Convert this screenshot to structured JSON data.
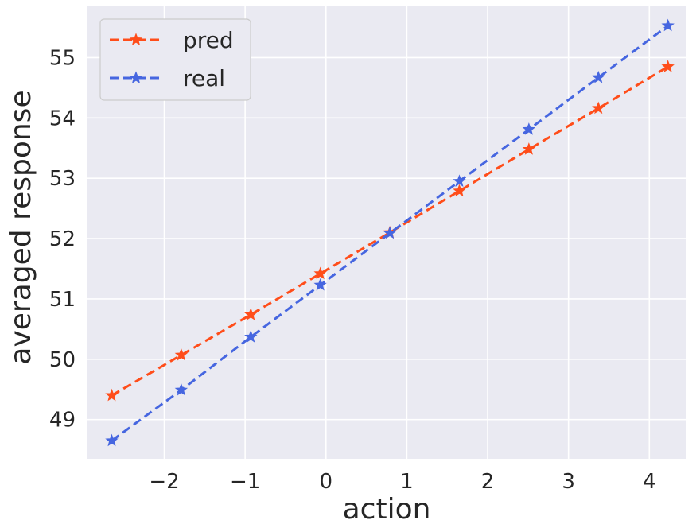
{
  "chart_data": {
    "type": "line",
    "title": "",
    "xlabel": "action",
    "ylabel": "averaged response",
    "xlim": [
      -2.95,
      4.45
    ],
    "ylim": [
      48.35,
      55.85
    ],
    "xticks": [
      -2,
      -1,
      0,
      1,
      2,
      3,
      4
    ],
    "xtick_labels": [
      "−2",
      "−1",
      "0",
      "1",
      "2",
      "3",
      "4"
    ],
    "yticks": [
      49,
      50,
      51,
      52,
      53,
      54,
      55
    ],
    "ytick_labels": [
      "49",
      "50",
      "51",
      "52",
      "53",
      "54",
      "55"
    ],
    "grid": true,
    "legend_position": "top-left",
    "x": [
      -2.65,
      -1.79,
      -0.93,
      -0.07,
      0.79,
      1.65,
      2.51,
      3.37,
      4.23
    ],
    "series": [
      {
        "name": "pred",
        "color": "#ff4d1a",
        "line_style": "dashed",
        "marker": "star",
        "values": [
          49.4,
          50.07,
          50.74,
          51.42,
          52.1,
          52.79,
          53.48,
          54.16,
          54.85
        ]
      },
      {
        "name": "real",
        "color": "#4666e0",
        "line_style": "dashed",
        "marker": "star",
        "values": [
          48.65,
          49.49,
          50.37,
          51.23,
          52.09,
          52.95,
          53.81,
          54.67,
          55.53
        ]
      }
    ]
  }
}
